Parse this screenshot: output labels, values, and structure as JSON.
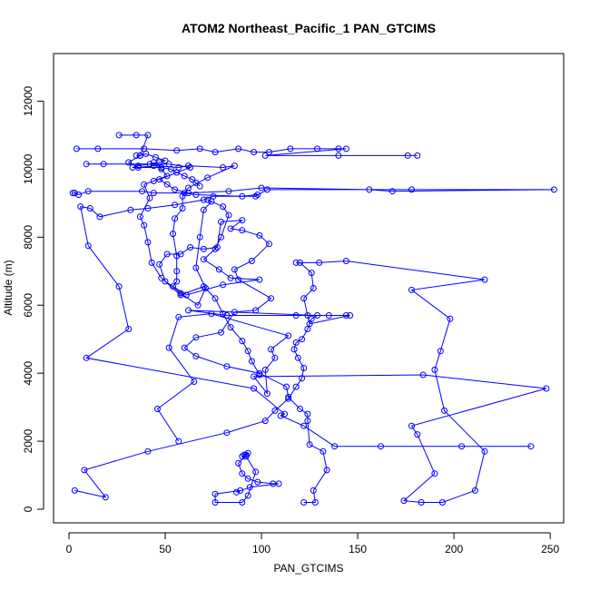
{
  "chart_data": {
    "type": "line",
    "title": "ATOM2 Northeast_Pacific_1 PAN_GTCIMS",
    "xlabel": "PAN_GTCIMS",
    "ylabel": "Altitude (m)",
    "xlim": [
      -8,
      257
    ],
    "ylim": [
      -400,
      13400
    ],
    "xticks": [
      0,
      50,
      100,
      150,
      200,
      250
    ],
    "yticks": [
      0,
      2000,
      4000,
      6000,
      8000,
      10000,
      12000
    ],
    "marker": "open-circle",
    "color": "#0000ff",
    "series": [
      {
        "points": [
          [
            3,
            550
          ],
          [
            19,
            350
          ],
          [
            8,
            1150
          ],
          [
            41,
            1700
          ],
          [
            82,
            2250
          ],
          [
            102,
            2600
          ],
          [
            107,
            2900
          ],
          [
            114,
            3250
          ],
          [
            118,
            3600
          ],
          [
            121,
            3850
          ],
          [
            122,
            4150
          ],
          [
            119,
            4450
          ],
          [
            117,
            4700
          ],
          [
            118,
            4900
          ],
          [
            121,
            5000
          ],
          [
            124,
            5300
          ],
          [
            126,
            5600
          ],
          [
            129,
            5700
          ],
          [
            62,
            5850
          ],
          [
            82,
            5700
          ],
          [
            118,
            5700
          ],
          [
            124,
            5700
          ],
          [
            135,
            5700
          ],
          [
            144,
            5700
          ],
          [
            146,
            5700
          ],
          [
            125,
            5450
          ],
          [
            122,
            6200
          ],
          [
            127,
            6500
          ],
          [
            126,
            6950
          ],
          [
            120,
            7250
          ],
          [
            118,
            7250
          ],
          [
            130,
            7250
          ],
          [
            144,
            7300
          ],
          [
            216,
            6750
          ],
          [
            178,
            6450
          ],
          [
            198,
            5600
          ],
          [
            193,
            4650
          ],
          [
            190,
            4100
          ],
          [
            195,
            2900
          ],
          [
            216,
            1700
          ],
          [
            211,
            550
          ],
          [
            194,
            200
          ],
          [
            183,
            200
          ],
          [
            174,
            250
          ],
          [
            190,
            1050
          ],
          [
            181,
            2200
          ],
          [
            178,
            2450
          ],
          [
            248,
            3550
          ],
          [
            184,
            3950
          ],
          [
            96,
            3900
          ],
          [
            103,
            3400
          ],
          [
            102,
            4100
          ],
          [
            107,
            4450
          ],
          [
            105,
            4700
          ],
          [
            114,
            5100
          ],
          [
            74,
            5750
          ],
          [
            57,
            5650
          ],
          [
            52,
            4750
          ],
          [
            65,
            3750
          ],
          [
            46,
            2950
          ],
          [
            57,
            2000
          ]
        ]
      },
      {
        "points": [
          [
            9,
            10150
          ],
          [
            18,
            10150
          ],
          [
            52,
            10150
          ],
          [
            63,
            10050
          ],
          [
            47,
            9700
          ],
          [
            51,
            9550
          ],
          [
            55,
            9400
          ],
          [
            62,
            9300
          ],
          [
            83,
            9350
          ],
          [
            100,
            9450
          ],
          [
            156,
            9400
          ],
          [
            168,
            9350
          ],
          [
            252,
            9400
          ],
          [
            178,
            9400
          ],
          [
            103,
            9400
          ],
          [
            97,
            9200
          ],
          [
            75,
            9200
          ],
          [
            70,
            9100
          ],
          [
            55,
            8950
          ],
          [
            41,
            8850
          ],
          [
            32,
            8800
          ],
          [
            16,
            8600
          ],
          [
            11,
            8850
          ],
          [
            6,
            8900
          ],
          [
            10,
            7750
          ],
          [
            26,
            6550
          ],
          [
            31,
            5300
          ],
          [
            9,
            4450
          ],
          [
            96,
            3550
          ],
          [
            112,
            2800
          ],
          [
            110,
            2750
          ],
          [
            122,
            2450
          ],
          [
            138,
            1850
          ],
          [
            162,
            1850
          ],
          [
            204,
            1850
          ],
          [
            240,
            1850
          ]
        ]
      },
      {
        "points": [
          [
            4,
            10600
          ],
          [
            15,
            10600
          ],
          [
            39,
            10600
          ],
          [
            56,
            10550
          ],
          [
            68,
            10600
          ],
          [
            76,
            10500
          ],
          [
            88,
            10600
          ],
          [
            96,
            10500
          ],
          [
            104,
            10500
          ],
          [
            115,
            10600
          ],
          [
            129,
            10600
          ],
          [
            140,
            10600
          ],
          [
            144,
            10600
          ],
          [
            102,
            10400
          ],
          [
            140,
            10400
          ],
          [
            176,
            10400
          ],
          [
            181,
            10400
          ]
        ]
      },
      {
        "points": [
          [
            26,
            11000
          ],
          [
            35,
            11000
          ],
          [
            41,
            11000
          ],
          [
            37,
            10400
          ],
          [
            31,
            10200
          ],
          [
            36,
            10050
          ],
          [
            44,
            10100
          ],
          [
            57,
            10050
          ],
          [
            62,
            10100
          ],
          [
            80,
            10050
          ],
          [
            86,
            10100
          ],
          [
            72,
            9750
          ],
          [
            62,
            9450
          ],
          [
            59,
            9200
          ],
          [
            59,
            8850
          ],
          [
            55,
            8550
          ],
          [
            54,
            8100
          ],
          [
            56,
            7450
          ],
          [
            56,
            7000
          ],
          [
            56,
            6700
          ],
          [
            54,
            6550
          ],
          [
            58,
            6350
          ],
          [
            67,
            6000
          ],
          [
            71,
            6500
          ],
          [
            66,
            7100
          ],
          [
            68,
            8000
          ],
          [
            70,
            8800
          ],
          [
            74,
            9050
          ],
          [
            72,
            9100
          ],
          [
            80,
            8900
          ],
          [
            83,
            8650
          ],
          [
            79,
            8000
          ],
          [
            76,
            7650
          ],
          [
            70,
            7350
          ],
          [
            78,
            7050
          ],
          [
            84,
            6800
          ],
          [
            99,
            6750
          ],
          [
            80,
            6600
          ],
          [
            61,
            6300
          ],
          [
            50,
            6700
          ],
          [
            47,
            7200
          ],
          [
            51,
            7500
          ],
          [
            58,
            7500
          ],
          [
            63,
            7700
          ],
          [
            70,
            7650
          ],
          [
            77,
            7700
          ],
          [
            79,
            8450
          ],
          [
            90,
            8500
          ],
          [
            84,
            8250
          ],
          [
            90,
            8200
          ],
          [
            99,
            8050
          ],
          [
            104,
            7800
          ],
          [
            95,
            7300
          ],
          [
            86,
            7050
          ],
          [
            88,
            6750
          ],
          [
            105,
            6200
          ],
          [
            97,
            5850
          ],
          [
            86,
            5800
          ],
          [
            79,
            5200
          ],
          [
            66,
            5050
          ],
          [
            60,
            4750
          ],
          [
            66,
            4500
          ],
          [
            82,
            4200
          ],
          [
            99,
            4000
          ],
          [
            113,
            3600
          ],
          [
            114,
            3300
          ],
          [
            120,
            2950
          ],
          [
            124,
            2800
          ],
          [
            124,
            2600
          ],
          [
            125,
            1900
          ],
          [
            132,
            1700
          ],
          [
            134,
            1150
          ],
          [
            127,
            550
          ],
          [
            128,
            200
          ],
          [
            122,
            200
          ]
        ]
      },
      {
        "points": [
          [
            92,
            1600
          ],
          [
            88,
            1350
          ],
          [
            90,
            1050
          ],
          [
            93,
            900
          ],
          [
            98,
            800
          ],
          [
            106,
            750
          ],
          [
            109,
            750
          ],
          [
            94,
            650
          ],
          [
            87,
            500
          ],
          [
            89,
            550
          ],
          [
            76,
            450
          ],
          [
            76,
            200
          ],
          [
            90,
            200
          ],
          [
            93,
            400
          ],
          [
            97,
            1100
          ],
          [
            92,
            1550
          ],
          [
            93,
            1650
          ],
          [
            91,
            1600
          ],
          [
            90,
            1550
          ]
        ]
      },
      {
        "points": [
          [
            44,
            10200
          ],
          [
            48,
            10000
          ],
          [
            51,
            9800
          ],
          [
            44,
            9650
          ],
          [
            39,
            9550
          ],
          [
            42,
            9150
          ],
          [
            37,
            8600
          ],
          [
            39,
            8350
          ],
          [
            41,
            7850
          ],
          [
            43,
            7250
          ],
          [
            48,
            6800
          ],
          [
            58,
            6300
          ],
          [
            70,
            6550
          ],
          [
            76,
            6200
          ],
          [
            80,
            5750
          ],
          [
            84,
            5350
          ],
          [
            90,
            4950
          ],
          [
            93,
            4650
          ],
          [
            95,
            4350
          ],
          [
            99,
            3950
          ]
        ]
      },
      {
        "points": [
          [
            2,
            9300
          ],
          [
            3,
            9300
          ],
          [
            5,
            9250
          ],
          [
            10,
            9350
          ],
          [
            38,
            9350
          ],
          [
            44,
            9300
          ],
          [
            60,
            9300
          ],
          [
            66,
            9250
          ],
          [
            90,
            9200
          ],
          [
            98,
            9250
          ]
        ]
      },
      {
        "points": [
          [
            35,
            10400
          ],
          [
            37,
            10400
          ],
          [
            40,
            10450
          ],
          [
            45,
            10350
          ],
          [
            50,
            10250
          ],
          [
            47,
            10200
          ],
          [
            42,
            10150
          ],
          [
            36,
            10100
          ],
          [
            33,
            10050
          ],
          [
            48,
            10050
          ],
          [
            53,
            10000
          ],
          [
            56,
            9900
          ],
          [
            60,
            9800
          ],
          [
            64,
            9700
          ],
          [
            66,
            9600
          ],
          [
            68,
            9500
          ]
        ]
      }
    ]
  }
}
